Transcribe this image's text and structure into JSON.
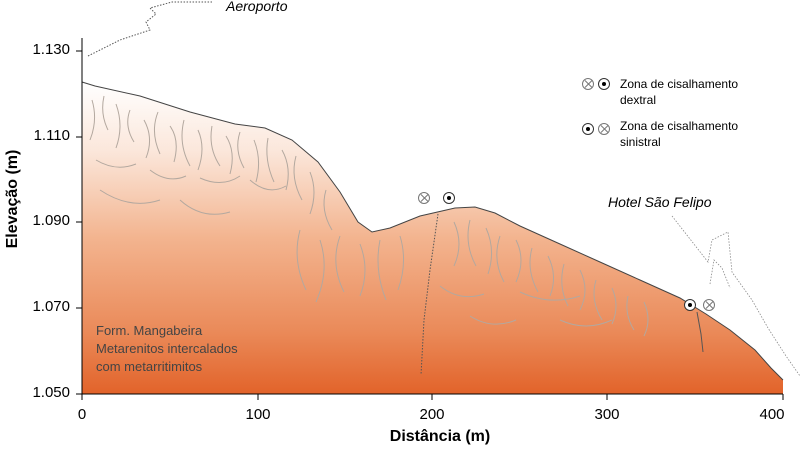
{
  "axes": {
    "y_label": "Elevação (m)",
    "x_label": "Distância (m)",
    "y_ticks": [
      "1.130",
      "1.110",
      "1.090",
      "1.070",
      "1.050"
    ],
    "x_ticks": [
      "0",
      "100",
      "200",
      "300",
      "400"
    ]
  },
  "places": {
    "airport": "Aeroporto",
    "hotel": "Hotel São Felipo"
  },
  "legend": {
    "dextral": {
      "line1": "Zona de cisalhamento",
      "line2": "dextral"
    },
    "sinistral": {
      "line1": "Zona de cisalhamento",
      "line2": "sinistral"
    }
  },
  "formation": {
    "line1": "Form. Mangabeira",
    "line2": "Metarenitos intercalados",
    "line3": "com metarritimitos"
  },
  "colors": {
    "fill_top": "#ffffff",
    "fill_bottom": "#e2632a",
    "profile_line": "#444444",
    "structure_lines": "#b3a89f"
  }
}
